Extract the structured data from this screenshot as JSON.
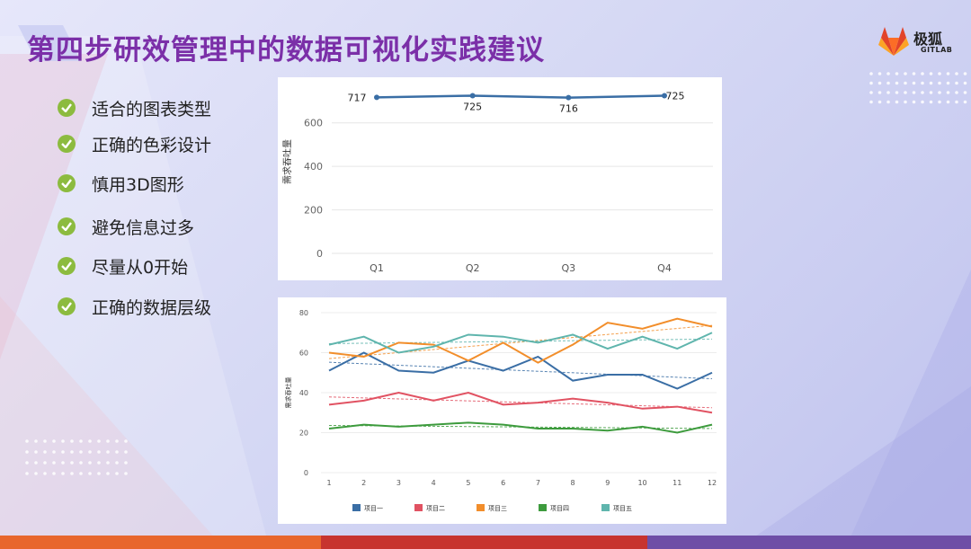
{
  "slide": {
    "title": "第四步研效管理中的数据可视化实践建议",
    "logo": {
      "name": "极狐",
      "sub": "GITLAB"
    },
    "tips": [
      "适合的图表类型",
      "正确的色彩设计",
      "慎用3D图形",
      "避免信息过多",
      "尽量从0开始",
      "正确的数据层级"
    ],
    "colors": {
      "title": "#7b2fa8",
      "check": "#8cbb3f"
    }
  },
  "chart_data": [
    {
      "type": "line",
      "categories": [
        "Q1",
        "Q2",
        "Q3",
        "Q4"
      ],
      "series": [
        {
          "values": [
            717,
            725,
            716,
            725
          ],
          "color": "#3a6ea5"
        }
      ],
      "data_labels": [
        "717",
        "725",
        "716",
        "725"
      ],
      "ylabel": "需求吞吐量",
      "yticks": [
        0,
        200,
        400,
        600
      ],
      "ylim": [
        0,
        760
      ],
      "grid": true
    },
    {
      "type": "line",
      "x": [
        1,
        2,
        3,
        4,
        5,
        6,
        7,
        8,
        9,
        10,
        11,
        12
      ],
      "series": [
        {
          "name": "项目一",
          "color": "#3a6ea5",
          "values": [
            51,
            60,
            51,
            50,
            56,
            51,
            58,
            46,
            49,
            49,
            42,
            50
          ]
        },
        {
          "name": "项目二",
          "color": "#e15262",
          "values": [
            34,
            36,
            40,
            36,
            40,
            34,
            35,
            37,
            35,
            32,
            33,
            30
          ]
        },
        {
          "name": "项目三",
          "color": "#f28e2b",
          "values": [
            60,
            58,
            65,
            64,
            56,
            65,
            55,
            64,
            75,
            72,
            77,
            73
          ]
        },
        {
          "name": "项目四",
          "color": "#3d9b3d",
          "values": [
            22,
            24,
            23,
            24,
            25,
            24,
            22,
            22,
            21,
            23,
            20,
            24
          ]
        },
        {
          "name": "项目五",
          "color": "#5fb5ad",
          "values": [
            64,
            68,
            60,
            63,
            69,
            68,
            65,
            69,
            62,
            68,
            62,
            70
          ]
        }
      ],
      "trendlines": true,
      "ylabel": "需求吞吐量",
      "yticks": [
        0,
        20,
        40,
        60,
        80
      ],
      "ylim": [
        0,
        80
      ],
      "legend": "bottom",
      "grid": true
    }
  ]
}
